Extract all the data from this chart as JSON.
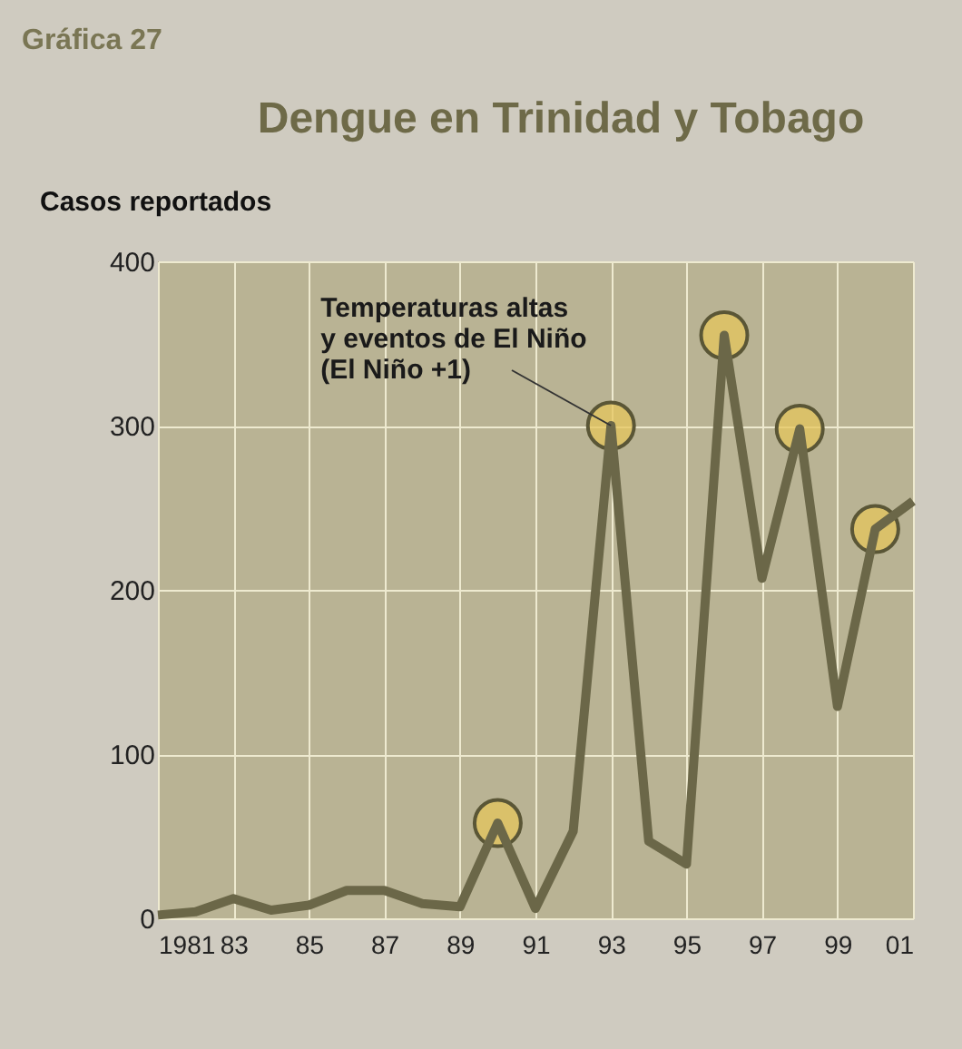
{
  "chart_data": {
    "type": "line",
    "title": "Dengue en Trinidad y Tobago",
    "ylabel": "Casos reportados",
    "annotations": [
      "Gráfica 27",
      {
        "text": "Temperaturas altas\ny eventos de El Niño\n(El Niño +1)",
        "x": 1993,
        "y": 300
      }
    ],
    "x": [
      1981,
      1982,
      1983,
      1984,
      1985,
      1986,
      1987,
      1988,
      1989,
      1990,
      1991,
      1992,
      1993,
      1994,
      1995,
      1996,
      1997,
      1998,
      1999,
      2000,
      2001
    ],
    "series": [
      {
        "color": "#6b6748",
        "values": [
          2,
          4,
          12,
          5,
          8,
          17,
          17,
          9,
          7,
          58,
          6,
          53,
          300,
          47,
          33,
          355,
          207,
          298,
          129,
          237,
          254
        ]
      },
      {
        "type": "scatter",
        "marker": "circle",
        "color": "#e6c65c",
        "x": [
          1990,
          1993,
          1996,
          1998,
          2000
        ],
        "values": [
          58,
          300,
          355,
          298,
          237
        ]
      }
    ],
    "xlim": [
      1981,
      2001
    ],
    "ylim": [
      0,
      400
    ],
    "xticks": [
      1981,
      {
        "value": 1983,
        "label": "83"
      },
      {
        "value": 1985,
        "label": "85"
      },
      {
        "value": 1987,
        "label": "87"
      },
      {
        "value": 1989,
        "label": "89"
      },
      {
        "value": 1991,
        "label": "91"
      },
      {
        "value": 1993,
        "label": "93"
      },
      {
        "value": 1995,
        "label": "95"
      },
      {
        "value": 1997,
        "label": "97"
      },
      {
        "value": 1999,
        "label": "99"
      },
      {
        "value": 2001,
        "label": "01"
      }
    ],
    "yticks": [
      0,
      100,
      200,
      300,
      400
    ],
    "grid": true
  }
}
